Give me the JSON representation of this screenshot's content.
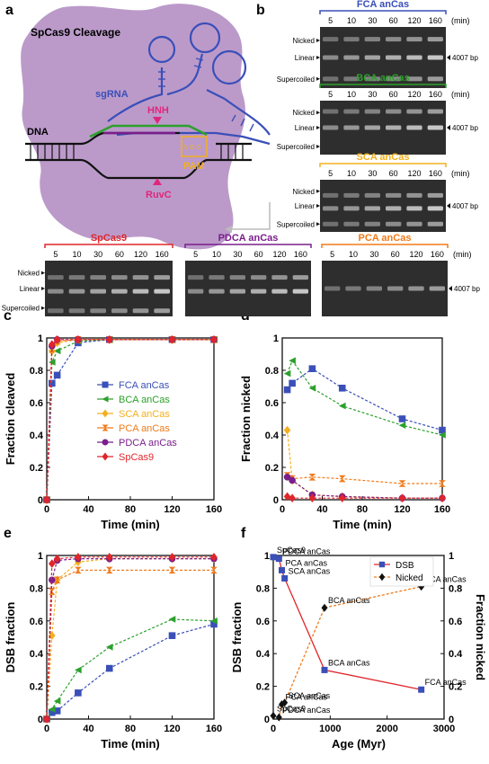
{
  "panel_letters": [
    "a",
    "b",
    "c",
    "d",
    "e",
    "f"
  ],
  "diagram": {
    "title": "SpCas9 Cleavage",
    "sgrna": "sgRNA",
    "hnh": "HNH",
    "dna": "DNA",
    "ruvc": "RuvC",
    "pam": "PAM",
    "pam_seq": "N G G"
  },
  "gels": {
    "lanes": [
      "5",
      "10",
      "30",
      "60",
      "120",
      "160"
    ],
    "unit": "(min)",
    "bands": [
      "Nicked",
      "Linear",
      "Supercoiled"
    ],
    "size": "4007 bp",
    "titles": {
      "fca": "FCA anCas",
      "bca": "BCA anCas",
      "sca": "SCA anCas",
      "spcas9": "SpCas9",
      "pdca": "PDCA anCas",
      "pca": "PCA anCas"
    },
    "colors": {
      "fca": "#3a4fb8",
      "bca": "#2ca02c",
      "sca": "#f2b01e",
      "spcas9": "#e0262b",
      "pdca": "#7b1e8c",
      "pca": "#f07a1a"
    }
  },
  "chart_data": [
    {
      "panel": "c",
      "type": "scatter",
      "xlabel": "Time (min)",
      "ylabel": "Fraction cleaved",
      "xlim": [
        0,
        160
      ],
      "ylim": [
        0,
        1
      ],
      "xticks": [
        "0",
        "40",
        "80",
        "120",
        "160"
      ],
      "yticks": [
        "0",
        "0.2",
        "0.4",
        "0.6",
        "0.8",
        "1"
      ],
      "legend": "center",
      "x": [
        0,
        5,
        10,
        30,
        60,
        120,
        160
      ],
      "series": [
        {
          "name": "FCA anCas",
          "color": "#3a4fb8",
          "marker": "square",
          "values": [
            0,
            0.72,
            0.77,
            0.97,
            0.99,
            0.99,
            0.99
          ]
        },
        {
          "name": "BCA anCas",
          "color": "#2ca02c",
          "marker": "triangle-left",
          "values": [
            0,
            0.85,
            0.92,
            0.98,
            0.99,
            0.99,
            0.99
          ]
        },
        {
          "name": "SCA anCas",
          "color": "#f2b01e",
          "marker": "diamond",
          "values": [
            0,
            0.92,
            0.97,
            0.99,
            0.99,
            0.99,
            0.99
          ]
        },
        {
          "name": "PCA anCas",
          "color": "#f07a1a",
          "marker": "hourglass",
          "values": [
            0,
            0.93,
            0.98,
            0.99,
            0.99,
            0.99,
            0.99
          ]
        },
        {
          "name": "PDCA anCas",
          "color": "#7b1e8c",
          "marker": "circle",
          "values": [
            0,
            0.95,
            0.99,
            0.99,
            0.99,
            0.99,
            0.99
          ]
        },
        {
          "name": "SpCas9",
          "color": "#e0262b",
          "marker": "diamond",
          "values": [
            0,
            0.96,
            0.99,
            0.99,
            0.99,
            0.99,
            0.99
          ]
        }
      ]
    },
    {
      "panel": "d",
      "type": "scatter",
      "xlabel": "Time (min)",
      "ylabel": "Fraction nicked",
      "xlim": [
        0,
        160
      ],
      "ylim": [
        0,
        1
      ],
      "xticks": [
        "0",
        "40",
        "80",
        "120",
        "160"
      ],
      "yticks": [
        "0",
        "0.2",
        "0.4",
        "0.6",
        "0.8",
        "1"
      ],
      "x": [
        5,
        10,
        30,
        60,
        120,
        160
      ],
      "series": [
        {
          "name": "FCA anCas",
          "color": "#3a4fb8",
          "marker": "square",
          "values": [
            0.68,
            0.72,
            0.81,
            0.69,
            0.5,
            0.43
          ]
        },
        {
          "name": "BCA anCas",
          "color": "#2ca02c",
          "marker": "triangle-left",
          "values": [
            0.78,
            0.86,
            0.69,
            0.58,
            0.46,
            0.4
          ]
        },
        {
          "name": "SCA anCas",
          "color": "#f2b01e",
          "marker": "diamond",
          "values": [
            0.43,
            0.12,
            0.03,
            0.02,
            0.01,
            0.01
          ]
        },
        {
          "name": "PCA anCas",
          "color": "#f07a1a",
          "marker": "hourglass",
          "values": [
            0.15,
            0.13,
            0.14,
            0.13,
            0.1,
            0.1
          ]
        },
        {
          "name": "PDCA anCas",
          "color": "#7b1e8c",
          "marker": "circle",
          "values": [
            0.14,
            0.12,
            0.03,
            0.02,
            0.01,
            0.01
          ]
        },
        {
          "name": "SpCas9",
          "color": "#e0262b",
          "marker": "diamond",
          "values": [
            0.02,
            0.01,
            0.01,
            0.01,
            0.01,
            0.01
          ]
        }
      ]
    },
    {
      "panel": "e",
      "type": "scatter",
      "xlabel": "Time (min)",
      "ylabel": "DSB fraction",
      "xlim": [
        0,
        160
      ],
      "ylim": [
        0,
        1
      ],
      "xticks": [
        "0",
        "40",
        "80",
        "120",
        "160"
      ],
      "yticks": [
        "0",
        "0.2",
        "0.4",
        "0.6",
        "0.8",
        "1"
      ],
      "x": [
        0,
        5,
        10,
        30,
        60,
        120,
        160
      ],
      "series": [
        {
          "name": "FCA anCas",
          "color": "#3a4fb8",
          "marker": "square",
          "values": [
            0,
            0.04,
            0.05,
            0.16,
            0.31,
            0.51,
            0.58
          ]
        },
        {
          "name": "BCA anCas",
          "color": "#2ca02c",
          "marker": "triangle-left",
          "values": [
            0,
            0.06,
            0.11,
            0.3,
            0.44,
            0.61,
            0.6
          ]
        },
        {
          "name": "SCA anCas",
          "color": "#f2b01e",
          "marker": "diamond",
          "values": [
            0,
            0.51,
            0.85,
            0.96,
            0.98,
            0.98,
            0.98
          ]
        },
        {
          "name": "PCA anCas",
          "color": "#f07a1a",
          "marker": "hourglass",
          "values": [
            0,
            0.78,
            0.85,
            0.91,
            0.91,
            0.91,
            0.91
          ]
        },
        {
          "name": "PDCA anCas",
          "color": "#7b1e8c",
          "marker": "circle",
          "values": [
            0,
            0.85,
            0.97,
            0.98,
            0.98,
            0.98,
            0.98
          ]
        },
        {
          "name": "SpCas9",
          "color": "#e0262b",
          "marker": "diamond",
          "values": [
            0,
            0.95,
            0.98,
            0.99,
            0.99,
            0.99,
            0.99
          ]
        }
      ]
    },
    {
      "panel": "f",
      "type": "line",
      "xlabel": "Age (Myr)",
      "ylabel": "DSB fraction",
      "y2label": "Fraction nicked",
      "xlim": [
        0,
        3000
      ],
      "ylim": [
        0,
        1
      ],
      "xticks": [
        "0",
        "1000",
        "2000",
        "3000"
      ],
      "yticks": [
        "0",
        "0.2",
        "0.4",
        "0.6",
        "0.8",
        "1"
      ],
      "legend": "top-right",
      "series": [
        {
          "name": "DSB",
          "color": "#3a4fb8",
          "marker": "square",
          "points": [
            {
              "x": 0,
              "y": 0.99,
              "label": "SpCas9"
            },
            {
              "x": 100,
              "y": 0.98,
              "label": "PDCA anCas"
            },
            {
              "x": 150,
              "y": 0.91,
              "label": "PCA anCas"
            },
            {
              "x": 200,
              "y": 0.86,
              "label": "SCA anCas"
            },
            {
              "x": 900,
              "y": 0.3,
              "label": "BCA anCas"
            },
            {
              "x": 2600,
              "y": 0.18,
              "label": "FCA anCas"
            }
          ]
        },
        {
          "name": "Nicked",
          "color": "#111111",
          "marker": "diamond",
          "points": [
            {
              "x": 0,
              "y": 0.02,
              "label": "SpCas9"
            },
            {
              "x": 100,
              "y": 0.01,
              "label": "PDCA anCas"
            },
            {
              "x": 150,
              "y": 0.09,
              "label": "PCA anCas"
            },
            {
              "x": 200,
              "y": 0.1,
              "label": "SCA anCas"
            },
            {
              "x": 900,
              "y": 0.68,
              "label": "BCA anCas"
            },
            {
              "x": 2600,
              "y": 0.81,
              "label": "FCA anCas"
            }
          ]
        }
      ]
    }
  ]
}
